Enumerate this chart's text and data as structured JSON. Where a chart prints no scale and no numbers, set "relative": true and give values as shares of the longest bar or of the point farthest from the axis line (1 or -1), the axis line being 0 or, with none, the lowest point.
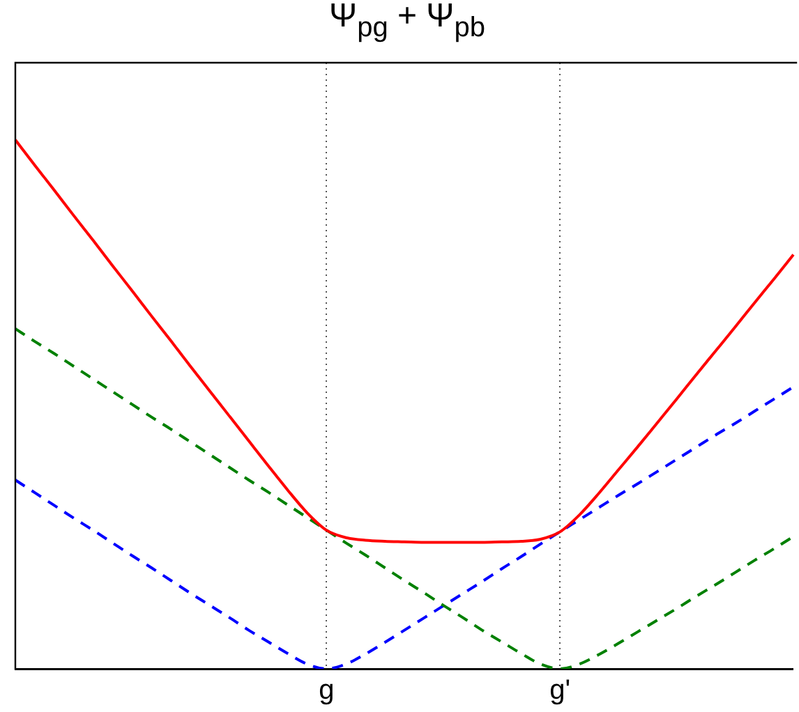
{
  "chart_data": {
    "type": "line",
    "title": "Ψ$_{pg}$ + Ψ$_{pb}$",
    "relative": true,
    "grid": "x",
    "categories": [
      null,
      null,
      null,
      null,
      null,
      null,
      null,
      null,
      null,
      null,
      null,
      null,
      null,
      null,
      null,
      null,
      "g",
      null,
      null,
      null,
      null,
      null,
      null,
      null,
      null,
      null,
      null,
      null,
      "g'",
      null,
      null,
      null,
      null,
      null,
      null,
      null,
      null,
      null,
      null,
      null,
      null
    ],
    "series": [
      {
        "color": "#0000ff",
        "line_style": "dashed",
        "values": [
          0.357,
          0.333,
          0.309,
          0.285,
          0.262,
          0.238,
          0.214,
          0.191,
          0.167,
          0.143,
          0.12,
          0.097,
          0.073,
          0.051,
          0.029,
          0.009,
          0,
          0.009,
          0.028,
          0.05,
          0.073,
          0.096,
          0.119,
          0.142,
          0.165,
          0.189,
          0.212,
          0.236,
          0.259,
          0.282,
          0.305,
          0.328,
          0.35,
          0.373,
          0.396,
          0.419,
          0.442,
          0.464,
          0.487,
          0.51,
          0.533
        ]
      },
      {
        "color": "#008000",
        "line_style": "dashed",
        "values": [
          0.643,
          0.619,
          0.596,
          0.572,
          0.548,
          0.524,
          0.5,
          0.476,
          0.453,
          0.429,
          0.405,
          0.381,
          0.357,
          0.334,
          0.31,
          0.286,
          0.262,
          0.238,
          0.215,
          0.191,
          0.167,
          0.144,
          0.12,
          0.097,
          0.073,
          0.051,
          0.029,
          0.009,
          0,
          0.009,
          0.027,
          0.048,
          0.07,
          0.092,
          0.114,
          0.137,
          0.159,
          0.182,
          0.205,
          0.227,
          0.25
        ]
      },
      {
        "color": "#ff0000",
        "line_style": "solid",
        "values": [
          1.0,
          0.952,
          0.905,
          0.857,
          0.81,
          0.762,
          0.715,
          0.667,
          0.62,
          0.572,
          0.525,
          0.478,
          0.431,
          0.384,
          0.338,
          0.295,
          0.262,
          0.248,
          0.243,
          0.241,
          0.24,
          0.239,
          0.239,
          0.239,
          0.239,
          0.24,
          0.241,
          0.245,
          0.259,
          0.291,
          0.332,
          0.376,
          0.42,
          0.465,
          0.51,
          0.556,
          0.601,
          0.646,
          0.692,
          0.737,
          0.783
        ]
      }
    ]
  }
}
